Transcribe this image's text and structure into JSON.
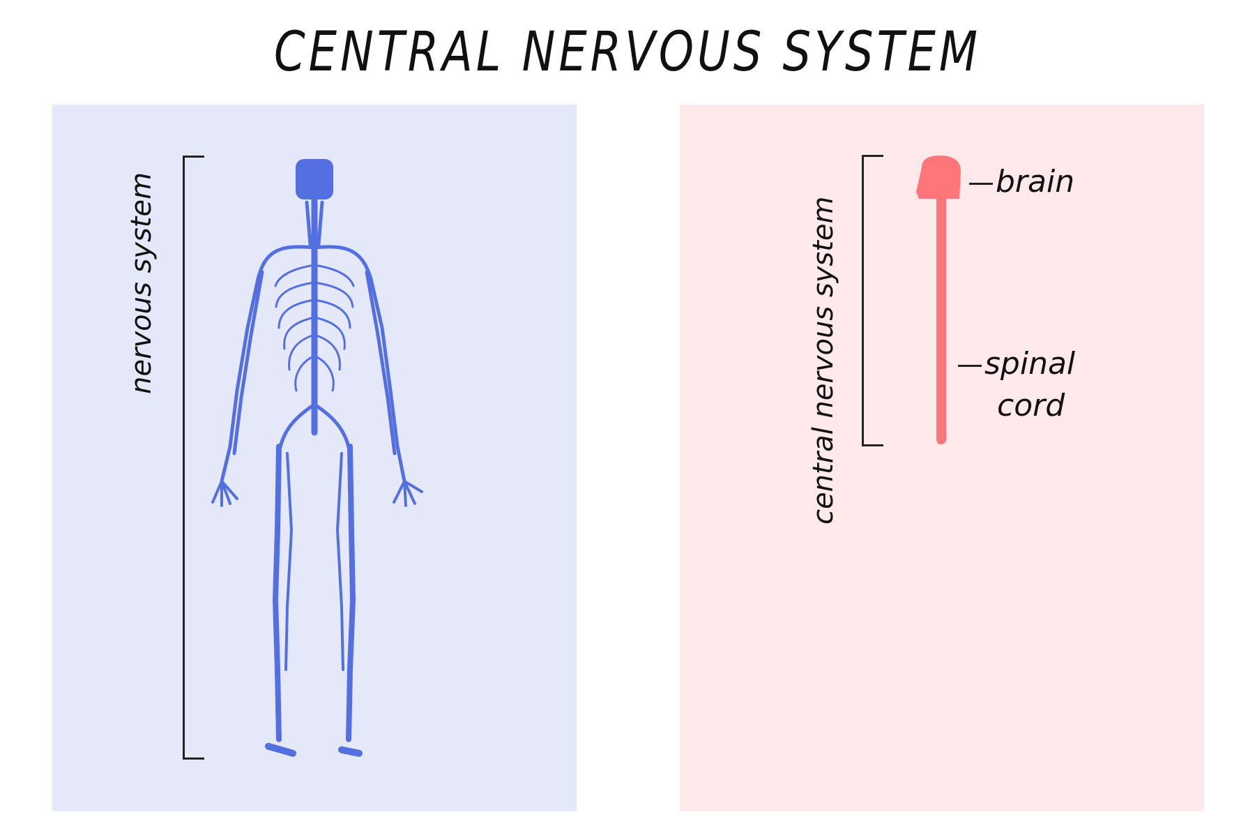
{
  "title": "CENTRAL NERVOUS SYSTEM",
  "left_panel": {
    "label": "nervous system",
    "background": "#E5E8F8",
    "figure_color": "#5470E0"
  },
  "right_panel": {
    "label": "central nervous system",
    "background": "#FFE9EA",
    "figure_color": "#FF767A",
    "annotations": {
      "brain": "brain",
      "spinal_cord_line1": "spinal",
      "spinal_cord_line2": "cord"
    }
  }
}
